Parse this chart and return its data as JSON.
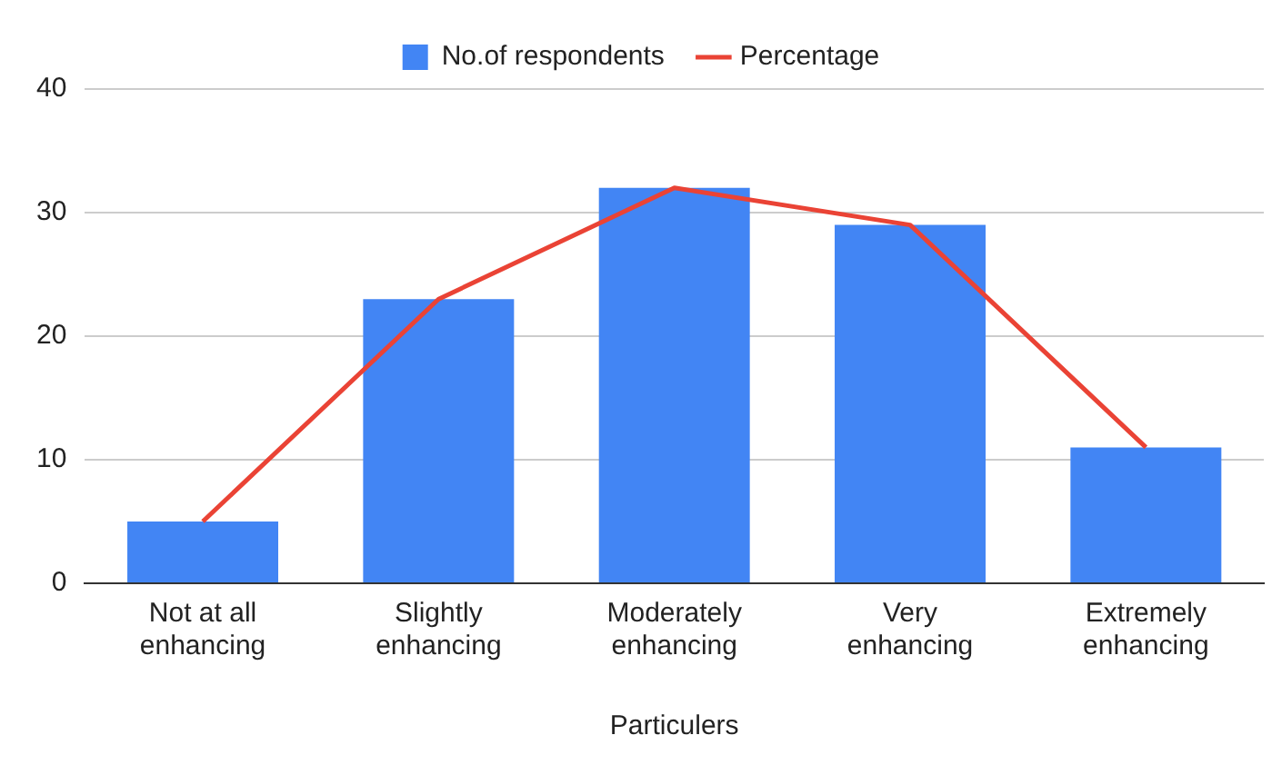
{
  "chart_data": {
    "type": "bar",
    "xlabel": "Particulers",
    "categories": [
      "Not at all enhancing",
      "Slightly enhancing",
      "Moderately enhancing",
      "Very enhancing",
      "Extremely enhancing"
    ],
    "series": [
      {
        "name": "No.of respondents",
        "color": "#4285f4",
        "values": [
          5,
          23,
          32,
          29,
          11
        ]
      },
      {
        "name": "Percentage",
        "type": "line",
        "color": "#ea4335",
        "values": [
          5,
          23,
          32,
          29,
          11
        ]
      }
    ],
    "ylim": [
      0,
      40
    ],
    "yticks": [
      0,
      10,
      20,
      30,
      40
    ],
    "grid": "y",
    "legend": "top",
    "marker": "none"
  }
}
